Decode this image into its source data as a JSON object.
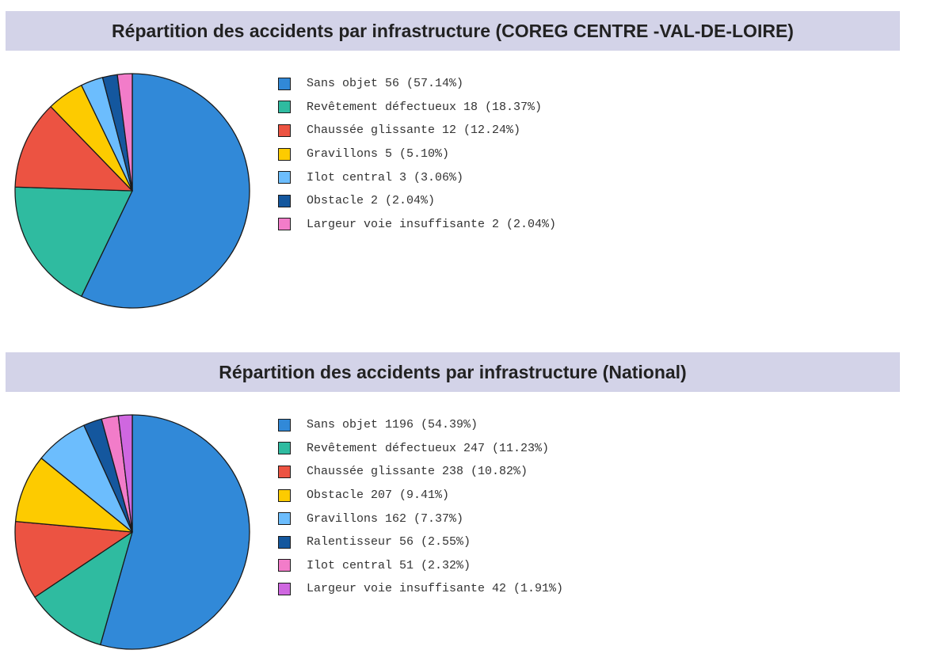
{
  "chart_data": [
    {
      "type": "pie",
      "title": "Répartition des accidents par infrastructure (COREG CENTRE -VAL-DE-LOIRE)",
      "legend_position": "right",
      "slices": [
        {
          "label": "Sans objet",
          "value": 56,
          "percent_label": "57.14%",
          "color": "#3189d8"
        },
        {
          "label": "Revêtement défectueux",
          "value": 18,
          "percent_label": "18.37%",
          "color": "#2fbba0"
        },
        {
          "label": "Chaussée glissante",
          "value": 12,
          "percent_label": "12.24%",
          "color": "#ec5342"
        },
        {
          "label": "Gravillons",
          "value": 5,
          "percent_label": "5.10%",
          "color": "#fdcb00"
        },
        {
          "label": "Ilot central",
          "value": 3,
          "percent_label": "3.06%",
          "color": "#6cbdfd"
        },
        {
          "label": "Obstacle",
          "value": 2,
          "percent_label": "2.04%",
          "color": "#14579e"
        },
        {
          "label": "Largeur voie insuffisante",
          "value": 2,
          "percent_label": "2.04%",
          "color": "#f27cc9"
        }
      ]
    },
    {
      "type": "pie",
      "title": "Répartition des accidents par infrastructure (National)",
      "legend_position": "right",
      "slices": [
        {
          "label": "Sans objet",
          "value": 1196,
          "percent_label": "54.39%",
          "color": "#3189d8"
        },
        {
          "label": "Revêtement défectueux",
          "value": 247,
          "percent_label": "11.23%",
          "color": "#2fbba0"
        },
        {
          "label": "Chaussée glissante",
          "value": 238,
          "percent_label": "10.82%",
          "color": "#ec5342"
        },
        {
          "label": "Obstacle",
          "value": 207,
          "percent_label": "9.41%",
          "color": "#fdcb00"
        },
        {
          "label": "Gravillons",
          "value": 162,
          "percent_label": "7.37%",
          "color": "#6cbdfd"
        },
        {
          "label": "Ralentisseur",
          "value": 56,
          "percent_label": "2.55%",
          "color": "#14579e"
        },
        {
          "label": "Ilot central",
          "value": 51,
          "percent_label": "2.32%",
          "color": "#f27cc9"
        },
        {
          "label": "Largeur voie insuffisante",
          "value": 42,
          "percent_label": "1.91%",
          "color": "#cf67e0"
        }
      ]
    }
  ]
}
